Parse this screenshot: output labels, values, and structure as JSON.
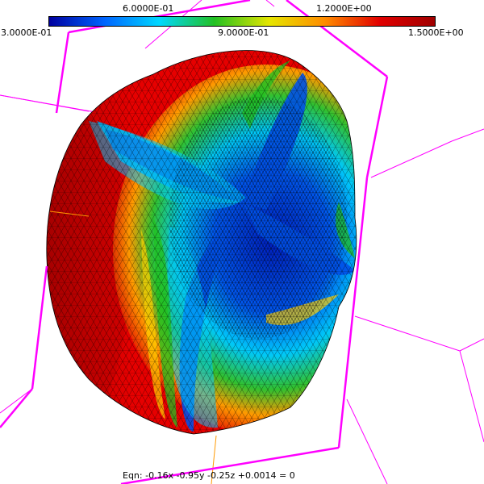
{
  "colorbar": {
    "top_ticks": [
      "6.0000E-01",
      "1.2000E+00"
    ],
    "bottom_ticks": [
      "3.0000E-01",
      "9.0000E-01",
      "1.5000E+00"
    ],
    "min_value": 0.3,
    "max_value": 1.5,
    "colormap": [
      "#0000a0",
      "#0064ff",
      "#00d8ff",
      "#22c022",
      "#e6e600",
      "#ff8c00",
      "#e10000",
      "#a00000"
    ]
  },
  "equation": {
    "label": "Eqn:  -0.16x -0.95y -0.25z +0.0014 = 0"
  },
  "colors": {
    "bounding_box": "#ff00ff",
    "axis_line": "#ff9900",
    "mesh_edge": "#000000",
    "background": "#ffffff"
  }
}
